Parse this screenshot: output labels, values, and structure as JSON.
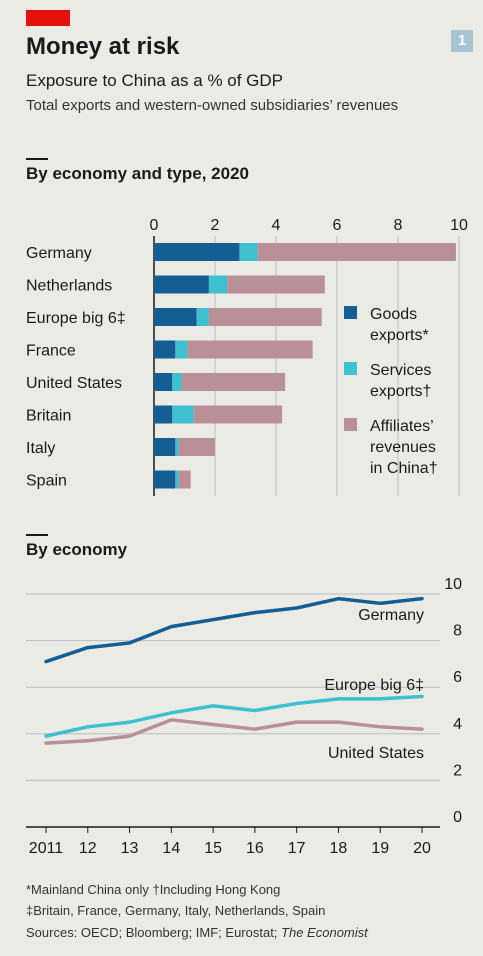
{
  "header": {
    "title": "Money at risk",
    "subtitle": "Exposure to China as a % of GDP",
    "subtitle2": "Total exports and western-owned subsidiaries’ revenues",
    "chart_number": "1"
  },
  "colors": {
    "goods": "#155e93",
    "services": "#3fbfcf",
    "affiliates": "#b89096",
    "germany_line": "#155e93",
    "europe_line": "#3fbfcf",
    "us_line": "#b89096",
    "brand_red": "#e3120b"
  },
  "chart_data": [
    {
      "type": "bar",
      "title": "By economy and type, 2020",
      "xlim": [
        0,
        10
      ],
      "ticks": [
        "0",
        "2",
        "4",
        "6",
        "8",
        "10"
      ],
      "categories": [
        "Germany",
        "Netherlands",
        "Europe big 6‡",
        "France",
        "United States",
        "Britain",
        "Italy",
        "Spain"
      ],
      "series": [
        {
          "name": "Goods exports*",
          "values": [
            2.8,
            1.8,
            1.4,
            0.7,
            0.6,
            0.6,
            0.7,
            0.7
          ]
        },
        {
          "name": "Services exports†",
          "values": [
            0.6,
            0.6,
            0.4,
            0.4,
            0.3,
            0.7,
            0.1,
            0.1
          ]
        },
        {
          "name": "Affiliates’ revenues in China†",
          "values": [
            6.5,
            3.2,
            3.7,
            4.1,
            3.4,
            2.9,
            1.2,
            0.4
          ]
        }
      ],
      "legend": [
        {
          "lines": [
            "Goods",
            "exports*"
          ]
        },
        {
          "lines": [
            "Services",
            "exports†"
          ]
        },
        {
          "lines": [
            "Affiliates’",
            "revenues",
            "in China†"
          ]
        }
      ],
      "legend_position": "right"
    },
    {
      "type": "line",
      "title": "By economy",
      "x": [
        2011,
        2012,
        2013,
        2014,
        2015,
        2016,
        2017,
        2018,
        2019,
        2020
      ],
      "xticks": [
        "2011",
        "12",
        "13",
        "14",
        "15",
        "16",
        "17",
        "18",
        "19",
        "20"
      ],
      "ylim": [
        0,
        10
      ],
      "yticks": [
        "0",
        "2",
        "4",
        "6",
        "8",
        "10"
      ],
      "grid": true,
      "series": [
        {
          "name": "Germany",
          "values": [
            7.1,
            7.7,
            7.9,
            8.6,
            8.9,
            9.2,
            9.4,
            9.8,
            9.6,
            9.8
          ]
        },
        {
          "name": "Europe big 6‡",
          "values": [
            3.9,
            4.3,
            4.5,
            4.9,
            5.2,
            5.0,
            5.3,
            5.5,
            5.5,
            5.6
          ]
        },
        {
          "name": "United States",
          "values": [
            3.6,
            3.7,
            3.9,
            4.6,
            4.4,
            4.2,
            4.5,
            4.5,
            4.3,
            4.2
          ]
        }
      ]
    }
  ],
  "footnotes": {
    "line1": "*Mainland China only   †Including Hong Kong",
    "line2": "‡Britain, France, Germany, Italy, Netherlands, Spain",
    "sources": "Sources: OECD; Bloomberg; IMF; Eurostat;",
    "sources_italic": "The Economist"
  }
}
